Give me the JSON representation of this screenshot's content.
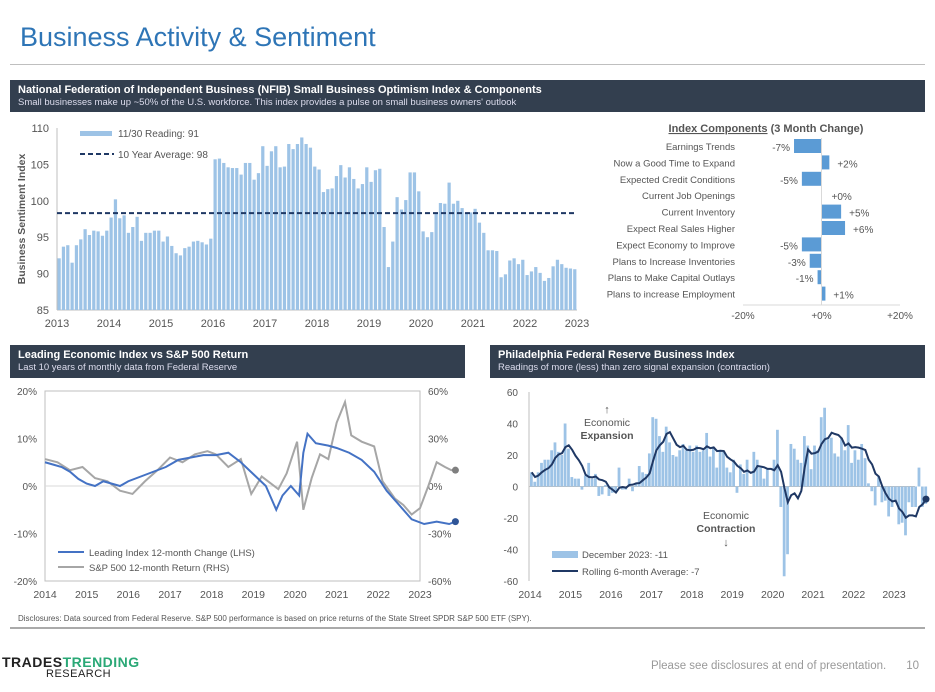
{
  "page": {
    "title": "Business Activity & Sentiment",
    "disclosure": "Disclosures: Data sourced from Federal Reserve. S&P 500 performance is based on price returns of the State Street SPDR S&P 500 ETF (SPY).",
    "footer": "Please see disclosures at end of presentation.",
    "page_number": "10",
    "logo_top_a": "TRADES",
    "logo_top_b": "TRENDING",
    "logo_bottom": "RESEARCH"
  },
  "panels": {
    "nfib": {
      "title": "National Federation of Independent Business (NFIB) Small Business Optimism Index & Components",
      "subtitle": "Small businesses make up ~50% of the U.S. workforce. This index provides a pulse on small business owners' outlook"
    },
    "lei": {
      "title": "Leading Economic Index vs S&P 500 Return",
      "subtitle": "Last 10 years of monthly data from Federal Reserve"
    },
    "philly": {
      "title": "Philadelphia Federal Reserve Business Index",
      "subtitle": "Readings of more (less) than zero signal expansion (contraction)"
    }
  },
  "chart_data": [
    {
      "type": "bar",
      "title": "",
      "ylabel": "Business Sentiment Index",
      "ylim": [
        85,
        110
      ],
      "yticks": [
        85,
        90,
        95,
        100,
        105,
        110
      ],
      "xticks": [
        "2013",
        "2014",
        "2015",
        "2016",
        "2017",
        "2018",
        "2019",
        "2020",
        "2021",
        "2022",
        "2023"
      ],
      "x_start": 2013,
      "legend": [
        "11/30 Reading:  91",
        "10 Year Average:  98"
      ],
      "average": 98.3,
      "color": "#9dc3e6",
      "avg_color": "#1f3864",
      "values": [
        92.1,
        93.7,
        93.9,
        91.5,
        93.9,
        94.7,
        96.1,
        95.3,
        95.9,
        95.8,
        95.2,
        95.9,
        97.7,
        100.2,
        97.6,
        98.0,
        95.6,
        96.4,
        97.8,
        94.5,
        95.6,
        95.6,
        95.9,
        95.9,
        94.4,
        95.1,
        93.8,
        92.8,
        92.5,
        93.5,
        93.7,
        94.4,
        94.5,
        94.3,
        94.0,
        94.8,
        105.7,
        105.8,
        105.2,
        104.6,
        104.5,
        104.5,
        103.6,
        105.2,
        105.2,
        102.9,
        103.8,
        107.5,
        104.8,
        106.8,
        107.5,
        104.6,
        104.7,
        107.8,
        107.1,
        107.8,
        108.7,
        107.8,
        107.3,
        104.7,
        104.3,
        101.2,
        101.6,
        101.7,
        103.4,
        104.9,
        103.2,
        104.6,
        103.0,
        101.7,
        102.3,
        104.6,
        102.6,
        104.2,
        104.4,
        96.4,
        90.9,
        94.4,
        100.5,
        98.8,
        100.1,
        103.9,
        103.9,
        101.3,
        95.8,
        95.0,
        95.7,
        98.2,
        99.7,
        99.6,
        102.5,
        99.6,
        100.0,
        99.0,
        98.4,
        98.4,
        98.9,
        97.0,
        95.6,
        93.2,
        93.2,
        93.1,
        89.5,
        89.9,
        91.8,
        92.1,
        91.3,
        91.9,
        89.8,
        90.3,
        90.9,
        90.1,
        89.0,
        89.4,
        91.0,
        91.9,
        91.3,
        90.8,
        90.7,
        90.6
      ]
    },
    {
      "type": "bar",
      "title_a": "Index Components",
      "title_b": " (3 Month Change)",
      "xlim": [
        -20,
        20
      ],
      "xticks": [
        "-20%",
        "+0%",
        "+20%"
      ],
      "color": "#5b9bd5",
      "categories": [
        "Earnings Trends",
        "Now a Good Time to Expand",
        "Expected Credit Conditions",
        "Current Job Openings",
        "Current Inventory",
        "Expect Real Sales Higher",
        "Expect Economy to Improve",
        "Plans to Increase Inventories",
        "Plans to Make Capital Outlays",
        "Plans to increase Employment"
      ],
      "values": [
        -7,
        2,
        -5,
        0,
        5,
        6,
        -5,
        -3,
        -1,
        1
      ],
      "labels": [
        "-7%",
        "+2%",
        "-5%",
        "+0%",
        "+5%",
        "+6%",
        "-5%",
        "-3%",
        "-1%",
        "+1%"
      ]
    },
    {
      "type": "line",
      "ylim_lhs": [
        -20,
        20
      ],
      "ylim_rhs": [
        -60,
        60
      ],
      "yticks_lhs": [
        "20%",
        "10%",
        "0%",
        "-10%",
        "-20%"
      ],
      "yticks_rhs": [
        "60%",
        "30%",
        "0%",
        "-30%",
        "-60%"
      ],
      "xticks": [
        "2014",
        "2015",
        "2016",
        "2017",
        "2018",
        "2019",
        "2020",
        "2021",
        "2022",
        "2023"
      ],
      "series": [
        {
          "name": "Leading Index 12-month Change (LHS)",
          "color": "#4472c4",
          "axis": "lhs",
          "points": [
            [
              2014,
              5
            ],
            [
              2014.2,
              4.5
            ],
            [
              2014.4,
              4
            ],
            [
              2014.6,
              3
            ],
            [
              2014.8,
              1.5
            ],
            [
              2015,
              0.5
            ],
            [
              2015.2,
              0
            ],
            [
              2015.4,
              1
            ],
            [
              2015.6,
              0.5
            ],
            [
              2015.8,
              0
            ],
            [
              2016,
              1
            ],
            [
              2016.3,
              2
            ],
            [
              2016.6,
              3
            ],
            [
              2016.9,
              4
            ],
            [
              2017.2,
              5.5
            ],
            [
              2017.5,
              6
            ],
            [
              2017.8,
              6.5
            ],
            [
              2018.1,
              6.5
            ],
            [
              2018.4,
              7
            ],
            [
              2018.7,
              5
            ],
            [
              2019,
              2.5
            ],
            [
              2019.3,
              0
            ],
            [
              2019.45,
              -3
            ],
            [
              2019.55,
              -5
            ],
            [
              2019.7,
              -2
            ],
            [
              2019.9,
              0
            ],
            [
              2020.1,
              -2
            ],
            [
              2020.2,
              7
            ],
            [
              2020.3,
              11
            ],
            [
              2020.5,
              9
            ],
            [
              2020.8,
              8.5
            ],
            [
              2021,
              8
            ],
            [
              2021.3,
              7
            ],
            [
              2021.6,
              5.5
            ],
            [
              2021.9,
              3
            ],
            [
              2022.2,
              -1
            ],
            [
              2022.5,
              -4
            ],
            [
              2022.8,
              -7
            ],
            [
              2023.1,
              -8
            ],
            [
              2023.4,
              -7.5
            ],
            [
              2023.7,
              -8
            ],
            [
              2023.85,
              -7.5
            ]
          ]
        },
        {
          "name": "S&P 500 12-month Return (RHS)",
          "color": "#a6a6a6",
          "axis": "rhs",
          "points": [
            [
              2014,
              17
            ],
            [
              2014.3,
              15
            ],
            [
              2014.6,
              10
            ],
            [
              2014.9,
              12
            ],
            [
              2015.2,
              5
            ],
            [
              2015.5,
              3
            ],
            [
              2015.8,
              -3
            ],
            [
              2016.1,
              -5
            ],
            [
              2016.4,
              3
            ],
            [
              2016.7,
              10
            ],
            [
              2017,
              18
            ],
            [
              2017.3,
              15
            ],
            [
              2017.6,
              20
            ],
            [
              2017.9,
              22
            ],
            [
              2018.1,
              20
            ],
            [
              2018.4,
              12
            ],
            [
              2018.7,
              17
            ],
            [
              2018.95,
              -5
            ],
            [
              2019.2,
              6
            ],
            [
              2019.4,
              2
            ],
            [
              2019.6,
              -2
            ],
            [
              2019.8,
              8
            ],
            [
              2020.05,
              28
            ],
            [
              2020.2,
              -15
            ],
            [
              2020.4,
              5
            ],
            [
              2020.6,
              20
            ],
            [
              2020.8,
              17
            ],
            [
              2021,
              40
            ],
            [
              2021.2,
              53
            ],
            [
              2021.35,
              32
            ],
            [
              2021.6,
              28
            ],
            [
              2021.9,
              25
            ],
            [
              2022.1,
              3
            ],
            [
              2022.4,
              -8
            ],
            [
              2022.6,
              -12
            ],
            [
              2022.8,
              -18
            ],
            [
              2023,
              -14
            ],
            [
              2023.2,
              0
            ],
            [
              2023.4,
              15
            ],
            [
              2023.6,
              12
            ],
            [
              2023.75,
              10
            ],
            [
              2023.85,
              10
            ]
          ]
        }
      ]
    },
    {
      "type": "bar",
      "ylim": [
        -60,
        60
      ],
      "yticks": [
        "60",
        "40",
        "20",
        "0",
        "-20",
        "-40",
        "-60"
      ],
      "xticks": [
        "2014",
        "2015",
        "2016",
        "2017",
        "2018",
        "2019",
        "2020",
        "2021",
        "2022",
        "2023"
      ],
      "x_start": 2014,
      "bar_color": "#9dc3e6",
      "line_color": "#1f3864",
      "legend": [
        "December 2023:  -11",
        "Rolling 6-month Average:  -7"
      ],
      "annotation_expansion": [
        "↑",
        "Economic",
        "Expansion"
      ],
      "annotation_contraction": [
        "Economic",
        "Contraction",
        "↓"
      ],
      "values": [
        9,
        3,
        9,
        15,
        17,
        17,
        23,
        28,
        22,
        20,
        40,
        24,
        6,
        5,
        5,
        -2,
        7,
        15,
        5,
        8,
        -6,
        -5,
        1,
        -6,
        -4,
        -3,
        12,
        -2,
        -2,
        5,
        -3,
        2,
        13,
        9,
        8,
        21,
        44,
        43,
        32,
        22,
        38,
        28,
        20,
        19,
        23,
        27,
        23,
        26,
        22,
        26,
        22,
        23,
        34,
        19,
        25,
        12,
        23,
        22,
        12,
        9,
        17,
        -4,
        14,
        8,
        17,
        0,
        22,
        17,
        12,
        5,
        11,
        0,
        17,
        36,
        -13,
        -57,
        -43,
        27,
        24,
        17,
        15,
        32,
        26,
        11,
        26,
        23,
        44,
        50,
        31,
        31,
        21,
        19,
        31,
        23,
        39,
        15,
        23,
        17,
        27,
        18,
        2,
        -3,
        -12,
        6,
        -10,
        -9,
        -19,
        -13,
        -9,
        -24,
        -23,
        -31,
        -10,
        -13,
        -13,
        12,
        -13,
        -11
      ]
    }
  ]
}
